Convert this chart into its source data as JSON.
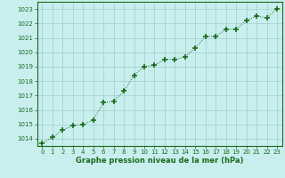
{
  "x": [
    0,
    1,
    2,
    3,
    4,
    5,
    6,
    7,
    8,
    9,
    10,
    11,
    12,
    13,
    14,
    15,
    16,
    17,
    18,
    19,
    20,
    21,
    22,
    23
  ],
  "y": [
    1013.7,
    1014.1,
    1014.6,
    1014.9,
    1015.0,
    1015.3,
    1016.5,
    1016.6,
    1017.3,
    1018.4,
    1019.0,
    1019.1,
    1019.5,
    1019.5,
    1019.7,
    1020.3,
    1021.1,
    1021.1,
    1021.6,
    1021.6,
    1022.2,
    1022.5,
    1022.4,
    1023.0
  ],
  "line_color": "#1a6b1a",
  "marker": "+",
  "marker_size": 4,
  "bg_color": "#c8eeee",
  "grid_color": "#9ecece",
  "xlabel": "Graphe pression niveau de la mer (hPa)",
  "xlabel_color": "#1a6b1a",
  "tick_color": "#1a6b1a",
  "ylim_min": 1013.5,
  "ylim_max": 1023.5,
  "xlim_min": -0.5,
  "xlim_max": 23.5,
  "yticks": [
    1014,
    1015,
    1016,
    1017,
    1018,
    1019,
    1020,
    1021,
    1022,
    1023
  ],
  "xtick_labels": [
    "0",
    "1",
    "2",
    "3",
    "4",
    "5",
    "6",
    "7",
    "8",
    "9",
    "10",
    "11",
    "12",
    "13",
    "14",
    "15",
    "16",
    "17",
    "18",
    "19",
    "20",
    "21",
    "22",
    "23"
  ]
}
